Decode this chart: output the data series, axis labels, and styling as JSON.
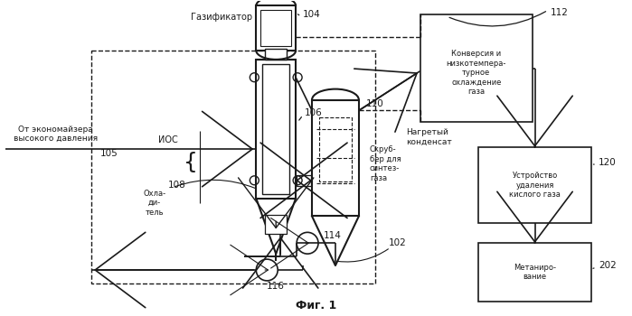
{
  "bg": "#ffffff",
  "lc": "#1a1a1a",
  "fig_label": "Фиг. 1",
  "box112_text": "Конверсия и\nнизкотемпера-\nтурное\nохлаждение\nгаза",
  "box120_text": "Устройство\nудаления\nкислого газа",
  "box202_text": "Метаниро-\nвание",
  "gasifier_text": "Газификатор",
  "ios_text": "ИОС",
  "cooler_text": "Охла-\nди-\nтель",
  "from_text": "От экономайзера\nвысокого давления",
  "scrubber_text": "Скруб-\nбер для\nсинтез-\nгаза",
  "hot_cond_text": "Нагретый\nконденсат",
  "label104": "104",
  "label106": "106",
  "label108": "108",
  "label110": "110",
  "label112": "112",
  "label114": "114",
  "label116": "116",
  "label120": "120",
  "label202": "202",
  "label102": "102",
  "label105": "105"
}
